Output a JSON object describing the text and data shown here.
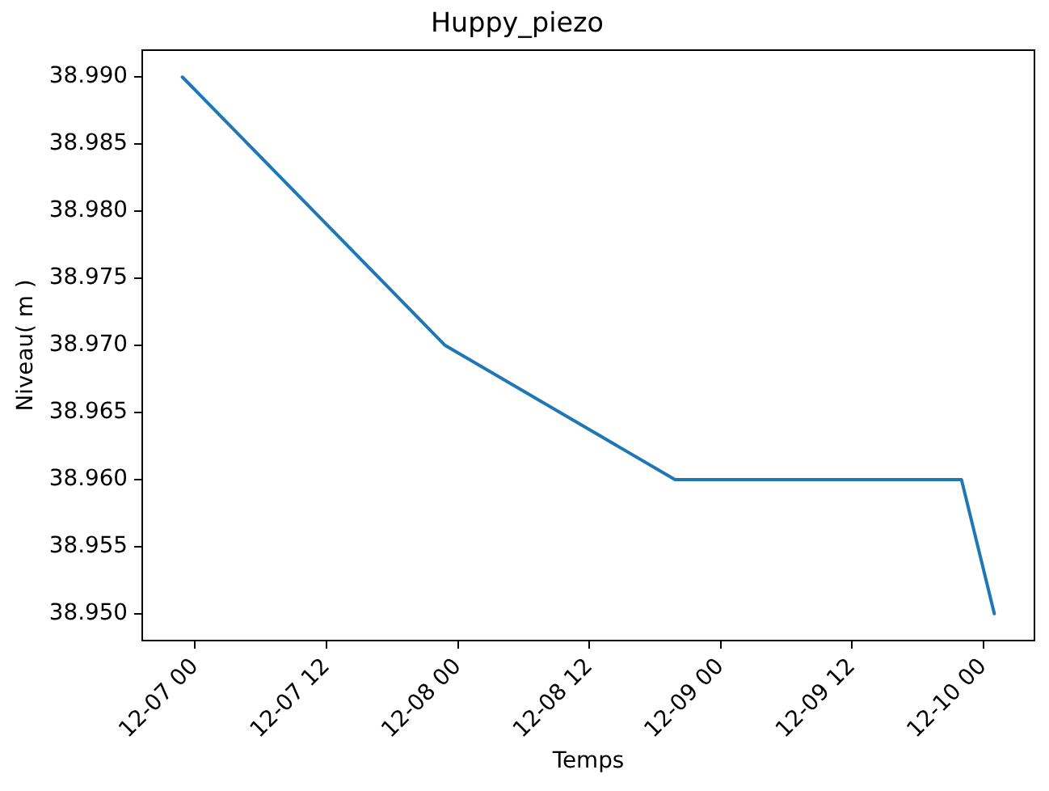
{
  "chart_data": {
    "type": "line",
    "title": "Huppy_piezo",
    "xlabel": "Temps",
    "ylabel": "Niveau( m )",
    "x": [
      "--12-06T22:50",
      "--12-07T22:50",
      "--12-08T19:50",
      "--12-09T22:00",
      "--12-10T01:00"
    ],
    "values": [
      38.99,
      38.97,
      38.96,
      38.96,
      38.95
    ],
    "color": "#1f77b4",
    "xlim": [
      "--12-06T19:10",
      "--12-10T04:40"
    ],
    "xticks": [
      {
        "value": "--12-07T00:00",
        "label": "12-07 00"
      },
      {
        "value": "--12-07T12:00",
        "label": "12-07 12"
      },
      {
        "value": "--12-08T00:00",
        "label": "12-08 00"
      },
      {
        "value": "--12-08T12:00",
        "label": "12-08 12"
      },
      {
        "value": "--12-09T00:00",
        "label": "12-09 00"
      },
      {
        "value": "--12-09T12:00",
        "label": "12-09 12"
      },
      {
        "value": "--12-10T00:00",
        "label": "12-10 00"
      }
    ],
    "ylim": [
      38.948,
      38.992
    ],
    "yticks": [
      {
        "value": 38.95,
        "label": "38.950"
      },
      {
        "value": 38.955,
        "label": "38.955"
      },
      {
        "value": 38.96,
        "label": "38.960"
      },
      {
        "value": 38.965,
        "label": "38.965"
      },
      {
        "value": 38.97,
        "label": "38.970"
      },
      {
        "value": 38.975,
        "label": "38.975"
      },
      {
        "value": 38.98,
        "label": "38.980"
      },
      {
        "value": 38.985,
        "label": "38.985"
      },
      {
        "value": 38.99,
        "label": "38.990"
      }
    ],
    "grid": false,
    "marker": "none",
    "line_style": "solid"
  }
}
